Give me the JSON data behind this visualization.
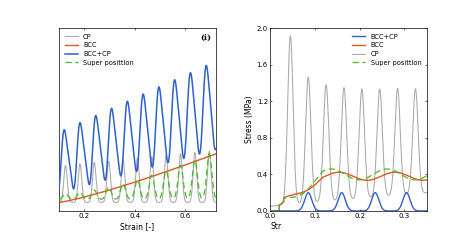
{
  "colors": {
    "CP": "#a8a8a8",
    "BCC": "#e05820",
    "BCC_CP": "#3060cc",
    "super": "#44bb22"
  },
  "left": {
    "xlim": [
      0.1,
      0.72
    ],
    "xticks": [
      0.2,
      0.4,
      0.6
    ],
    "xlabel": "Strain [-]",
    "label_i": "(i)"
  },
  "right": {
    "xlim": [
      0.0,
      0.35
    ],
    "ylim": [
      0.0,
      2.0
    ],
    "yticks": [
      0.0,
      0.4,
      0.8,
      1.2,
      1.6,
      2.0
    ],
    "xticks": [
      0,
      0.1,
      0.2,
      0.3
    ],
    "xlabel": "Str",
    "ylabel": "Stress (MPa)"
  },
  "legend_left": [
    "CP",
    "BCC",
    "BCC+CP",
    "Super posittion"
  ],
  "legend_right": [
    "BCC+CP",
    "BCC",
    "CP",
    "Super posittion"
  ]
}
